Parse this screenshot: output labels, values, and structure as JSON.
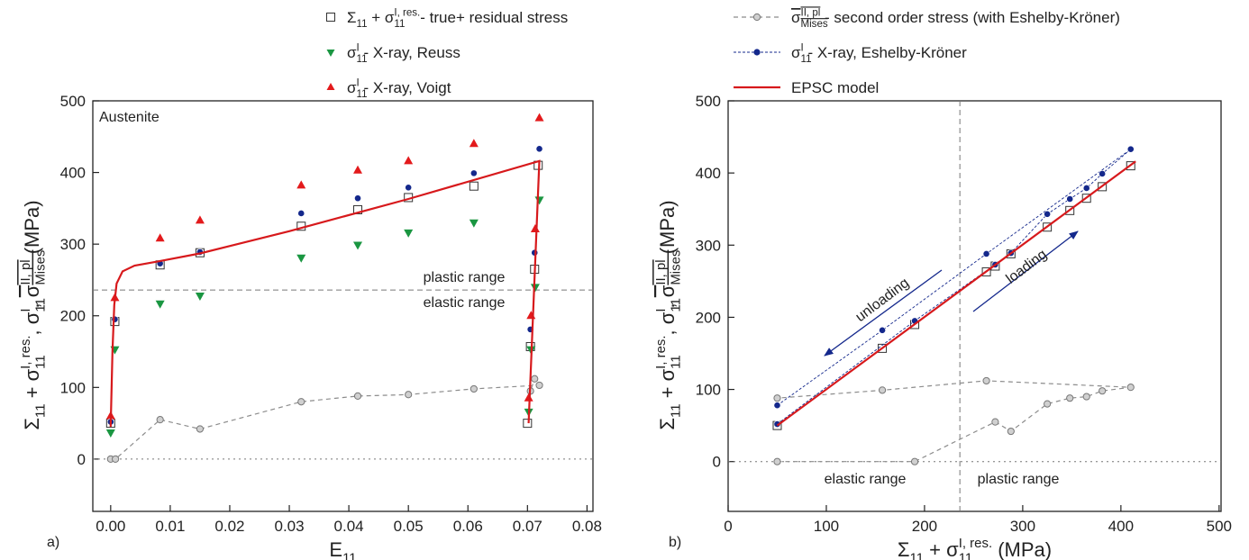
{
  "chart_data": [
    {
      "type": "scatter",
      "xlabel": [
        {
          "t": "E"
        },
        {
          "t": "11",
          "s": "sub"
        }
      ],
      "ylabel": [
        {
          "t": "Σ"
        },
        {
          "t": "11",
          "s": "sub"
        },
        {
          "t": " + σ"
        },
        {
          "t": "11",
          "s": "sub"
        },
        {
          "t": "I, res.",
          "s": "sup"
        },
        {
          "t": ", σ"
        },
        {
          "t": "11",
          "s": "sub"
        },
        {
          "t": "I",
          "s": "sup"
        },
        {
          "t": ", "
        },
        {
          "t": "σ",
          "o": true
        },
        {
          "t": "Mises",
          "s": "sub",
          "o": true
        },
        {
          "t": "II, pl",
          "s": "sup",
          "o": true
        },
        {
          "t": "  (MPa)"
        }
      ],
      "xlim": [
        -0.003,
        0.081
      ],
      "ylim": [
        -73,
        500
      ],
      "xticks": [
        {
          "value": 0,
          "label": "0.00"
        },
        0.01,
        0.02,
        0.03,
        0.04,
        0.05,
        0.06,
        0.07,
        0.08
      ],
      "yticks": [
        0,
        100,
        200,
        300,
        400,
        500
      ],
      "hlines": [
        {
          "value": 236,
          "style": "dashed"
        },
        {
          "value": 0,
          "style": "dotted"
        }
      ],
      "vlines": [],
      "annotations": [
        "Austenite",
        "plastic range",
        "elastic range",
        "a)"
      ],
      "legend": "above",
      "series": [
        {
          "color": "#8c8c8c",
          "marker": "circle-open-grey",
          "line": "dashed",
          "x": [
            0,
            0.0008,
            0.0083,
            0.015,
            0.032,
            0.0415,
            0.05,
            0.061,
            0.072,
            0.0712,
            0.0705
          ],
          "values": [
            0,
            0,
            55,
            42,
            80,
            88,
            90,
            98,
            103,
            112,
            95
          ]
        },
        {
          "name": [
            {
              "t": "Σ"
            },
            {
              "t": "11",
              "s": "sub"
            },
            {
              "t": " + σ"
            },
            {
              "t": "11",
              "s": "sub"
            },
            {
              "t": "I, res.",
              "s": "sup"
            },
            {
              "t": "- true+ residual stress"
            }
          ],
          "color": "#333333",
          "marker": "square-open",
          "line": "none",
          "x": [
            0,
            0.0007,
            0.0083,
            0.015,
            0.032,
            0.0415,
            0.05,
            0.061,
            0.0718,
            0.0712,
            0.0705,
            0.07
          ],
          "values": [
            50,
            192,
            271,
            288,
            325,
            348,
            365,
            381,
            410,
            265,
            157,
            50
          ]
        },
        {
          "name": [
            {
              "t": "σ"
            },
            {
              "t": "11",
              "s": "sub"
            },
            {
              "t": "I",
              "s": "sup"
            },
            {
              "t": " - X-ray, Reuss"
            }
          ],
          "color": "#1a9641",
          "marker": "tri-down",
          "line": "none",
          "x": [
            0,
            0.0007,
            0.0083,
            0.015,
            0.032,
            0.0415,
            0.05,
            0.061,
            0.072,
            0.0713,
            0.0706,
            0.0702
          ],
          "values": [
            37,
            153,
            217,
            228,
            281,
            299,
            316,
            330,
            362,
            240,
            153,
            66
          ]
        },
        {
          "name": [
            {
              "t": "σ"
            },
            {
              "t": "11",
              "s": "sub"
            },
            {
              "t": "I",
              "s": "sup"
            },
            {
              "t": " - X-ray, Voigt"
            }
          ],
          "color": "#e31a1c",
          "marker": "tri-up",
          "line": "none",
          "x": [
            0,
            0.0007,
            0.0083,
            0.015,
            0.032,
            0.0415,
            0.05,
            0.061,
            0.072,
            0.0713,
            0.0706,
            0.0702
          ],
          "values": [
            60,
            225,
            308,
            333,
            382,
            403,
            416,
            440,
            476,
            321,
            200,
            85
          ]
        },
        {
          "color": "#14288c",
          "marker": "circle",
          "line": "none",
          "x": [
            0,
            0.0007,
            0.0083,
            0.015,
            0.032,
            0.0415,
            0.05,
            0.061,
            0.072,
            0.0712,
            0.0705
          ],
          "values": [
            52,
            195,
            273,
            289,
            343,
            364,
            379,
            399,
            433,
            288,
            181
          ]
        },
        {
          "color": "#d7191c",
          "marker": "none",
          "line": "solid",
          "x": [
            0,
            0.0003,
            0.0006,
            0.001,
            0.002,
            0.004,
            0.008,
            0.015,
            0.03,
            0.05,
            0.072,
            0.0702
          ],
          "values": [
            45,
            150,
            215,
            245,
            262,
            270,
            276,
            287,
            318,
            363,
            416,
            50
          ]
        }
      ]
    },
    {
      "type": "scatter",
      "xlabel": [
        {
          "t": "Σ"
        },
        {
          "t": "11",
          "s": "sub"
        },
        {
          "t": " + σ"
        },
        {
          "t": "11",
          "s": "sub"
        },
        {
          "t": "I, res.",
          "s": "sup"
        },
        {
          "t": "  (MPa)"
        }
      ],
      "ylabel": [
        {
          "t": "Σ"
        },
        {
          "t": "11",
          "s": "sub"
        },
        {
          "t": " + σ"
        },
        {
          "t": "11",
          "s": "sub"
        },
        {
          "t": "I, res.",
          "s": "sup"
        },
        {
          "t": ", σ"
        },
        {
          "t": "11",
          "s": "sub"
        },
        {
          "t": "I",
          "s": "sup"
        },
        {
          "t": ", "
        },
        {
          "t": "σ",
          "o": true
        },
        {
          "t": "Mises",
          "s": "sub",
          "o": true
        },
        {
          "t": "II, pl",
          "s": "sup",
          "o": true
        },
        {
          "t": "  (MPa)"
        }
      ],
      "xlim": [
        0,
        502
      ],
      "ylim": [
        -69,
        500
      ],
      "xticks": [
        0,
        100,
        200,
        300,
        400,
        500
      ],
      "yticks": [
        0,
        100,
        200,
        300,
        400,
        500
      ],
      "hlines": [
        {
          "value": 0,
          "style": "dotted"
        }
      ],
      "vlines": [
        {
          "value": 236,
          "style": "dashed"
        }
      ],
      "annotations": [
        "elastic range",
        "plastic range",
        "unloading",
        "loading",
        "b)"
      ],
      "legend": "above",
      "series": [
        {
          "name": [
            {
              "t": "σ",
              "o": true
            },
            {
              "t": "Mises",
              "s": "sub",
              "o": true
            },
            {
              "t": "II, pl",
              "s": "sup",
              "o": true
            },
            {
              "t": " - second order stress (with Eshelby-Kröner)"
            }
          ],
          "color": "#8c8c8c",
          "marker": "circle-open-grey",
          "line": "dashed",
          "x": [
            50,
            190,
            272,
            288,
            325,
            348,
            365,
            381,
            410,
            263,
            157,
            50
          ],
          "values": [
            0,
            0,
            55,
            42,
            80,
            88,
            90,
            98,
            103,
            112,
            99,
            88
          ]
        },
        {
          "color": "#333333",
          "marker": "square-open",
          "line": "none",
          "x": [
            50,
            157,
            190,
            263,
            272,
            288,
            325,
            348,
            365,
            381,
            410
          ],
          "values": [
            50,
            157,
            190,
            263,
            271,
            288,
            325,
            348,
            365,
            381,
            410
          ]
        },
        {
          "name": [
            {
              "t": "σ"
            },
            {
              "t": "11",
              "s": "sub"
            },
            {
              "t": "I",
              "s": "sup"
            },
            {
              "t": " - X-ray, Eshelby-Kröner"
            }
          ],
          "color": "#14288c",
          "marker": "circle",
          "line": "dashed-thin",
          "x": [
            50,
            190,
            272,
            288,
            325,
            348,
            365,
            381,
            410,
            263,
            157,
            50
          ],
          "values": [
            52,
            195,
            273,
            289,
            343,
            364,
            379,
            399,
            433,
            288,
            182,
            78
          ]
        },
        {
          "name": [
            {
              "t": "EPSC model"
            }
          ],
          "color": "#d7191c",
          "marker": "none",
          "line": "solid",
          "x": [
            50,
            415
          ],
          "values": [
            50,
            416
          ]
        }
      ]
    }
  ]
}
